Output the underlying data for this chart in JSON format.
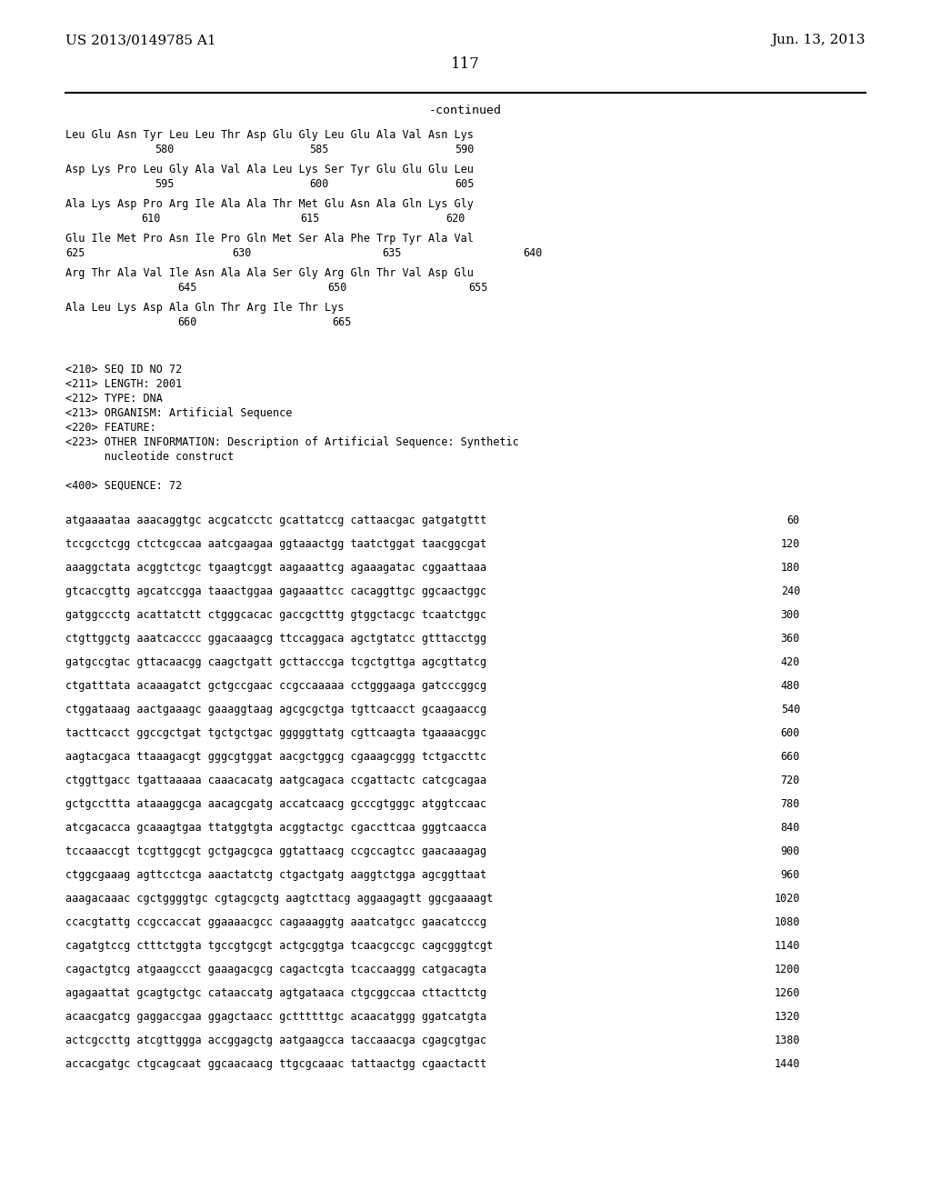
{
  "header_left": "US 2013/0149785 A1",
  "header_right": "Jun. 13, 2013",
  "page_number": "117",
  "continued": "-continued",
  "bg_color": "#ffffff",
  "text_color": "#000000",
  "font_size": 8.5,
  "header_font_size": 11,
  "page_num_font_size": 12,
  "amino_lines": [
    "Leu Glu Asn Tyr Leu Leu Thr Asp Glu Gly Leu Glu Ala Val Asn Lys",
    "Asp Lys Pro Leu Gly Ala Val Ala Leu Lys Ser Tyr Glu Glu Glu Leu",
    "Ala Lys Asp Pro Arg Ile Ala Ala Thr Met Glu Asn Ala Gln Lys Gly",
    "Glu Ile Met Pro Asn Ile Pro Gln Met Ser Ala Phe Trp Tyr Ala Val",
    "Arg Thr Ala Val Ile Asn Ala Ala Ser Gly Arg Gln Thr Val Asp Glu",
    "Ala Leu Lys Asp Ala Gln Thr Arg Ile Thr Lys"
  ],
  "amino_num_rows": [
    [
      [
        170,
        "580"
      ],
      [
        340,
        "585"
      ],
      [
        500,
        "590"
      ]
    ],
    [
      [
        170,
        "595"
      ],
      [
        340,
        "600"
      ],
      [
        500,
        "605"
      ]
    ],
    [
      [
        155,
        "610"
      ],
      [
        330,
        "615"
      ],
      [
        490,
        "620"
      ]
    ],
    [
      [
        72,
        "625"
      ],
      [
        255,
        "630"
      ],
      [
        420,
        "635"
      ],
      [
        575,
        "640"
      ]
    ],
    [
      [
        195,
        "645"
      ],
      [
        360,
        "650"
      ],
      [
        515,
        "655"
      ]
    ],
    [
      [
        195,
        "660"
      ],
      [
        365,
        "665"
      ]
    ]
  ],
  "metadata_lines": [
    "<210> SEQ ID NO 72",
    "<211> LENGTH: 2001",
    "<212> TYPE: DNA",
    "<213> ORGANISM: Artificial Sequence",
    "<220> FEATURE:",
    "<223> OTHER INFORMATION: Description of Artificial Sequence: Synthetic",
    "      nucleotide construct",
    "",
    "<400> SEQUENCE: 72"
  ],
  "sequence_lines": [
    [
      "atgaaaataa aaacaggtgc acgcatcctc gcattatccg cattaacgac gatgatgttt",
      "60"
    ],
    [
      "tccgcctcgg ctctcgccaa aatcgaagaa ggtaaactgg taatctggat taacggcgat",
      "120"
    ],
    [
      "aaaggctata acggtctcgc tgaagtcggt aagaaattcg agaaagatac cggaattaaa",
      "180"
    ],
    [
      "gtcaccgttg agcatccgga taaactggaa gagaaattcc cacaggttgc ggcaactggc",
      "240"
    ],
    [
      "gatggccctg acattatctt ctgggcacac gaccgctttg gtggctacgc tcaatctggc",
      "300"
    ],
    [
      "ctgttggctg aaatcacccc ggacaaagcg ttccaggaca agctgtatcc gtttacctgg",
      "360"
    ],
    [
      "gatgccgtac gttacaacgg caagctgatt gcttacccga tcgctgttga agcgttatcg",
      "420"
    ],
    [
      "ctgatttata acaaagatct gctgccgaac ccgccaaaaa cctgggaaga gatcccggcg",
      "480"
    ],
    [
      "ctggataaag aactgaaagc gaaaggtaag agcgcgctga tgttcaacct gcaagaaccg",
      "540"
    ],
    [
      "tacttcacct ggccgctgat tgctgctgac gggggttatg cgttcaagta tgaaaacggc",
      "600"
    ],
    [
      "aagtacgaca ttaaagacgt gggcgtggat aacgctggcg cgaaagcggg tctgaccttc",
      "660"
    ],
    [
      "ctggttgacc tgattaaaaa caaacacatg aatgcagaca ccgattactc catcgcagaa",
      "720"
    ],
    [
      "gctgccttta ataaaggcga aacagcgatg accatcaacg gcccgtgggc atggtccaac",
      "780"
    ],
    [
      "atcgacacca gcaaagtgaa ttatggtgta acggtactgc cgaccttcaa gggtcaacca",
      "840"
    ],
    [
      "tccaaaccgt tcgttggcgt gctgagcgca ggtattaacg ccgccagtcc gaacaaagag",
      "900"
    ],
    [
      "ctggcgaaag agttcctcga aaactatctg ctgactgatg aaggtctgga agcggttaat",
      "960"
    ],
    [
      "aaagacaaac cgctggggtgc cgtagcgctg aagtcttacg aggaagagtt ggcgaaaagt",
      "1020"
    ],
    [
      "ccacgtattg ccgccaccat ggaaaacgcc cagaaaggtg aaatcatgcc gaacatcccg",
      "1080"
    ],
    [
      "cagatgtccg ctttctggta tgccgtgcgt actgcggtga tcaacgccgc cagcgggtcgt",
      "1140"
    ],
    [
      "cagactgtcg atgaagccct gaaagacgcg cagactcgta tcaccaaggg catgacagta",
      "1200"
    ],
    [
      "agagaattat gcagtgctgc cataaccatg agtgataaca ctgcggccaa cttacttctg",
      "1260"
    ],
    [
      "acaacgatcg gaggaccgaa ggagctaacc gcttttttgc acaacatggg ggatcatgta",
      "1320"
    ],
    [
      "actcgccttg atcgttggga accggagctg aatgaagcca taccaaacga cgagcgtgac",
      "1380"
    ],
    [
      "accacgatgc ctgcagcaat ggcaacaacg ttgcgcaaac tattaactgg cgaactactt",
      "1440"
    ]
  ]
}
